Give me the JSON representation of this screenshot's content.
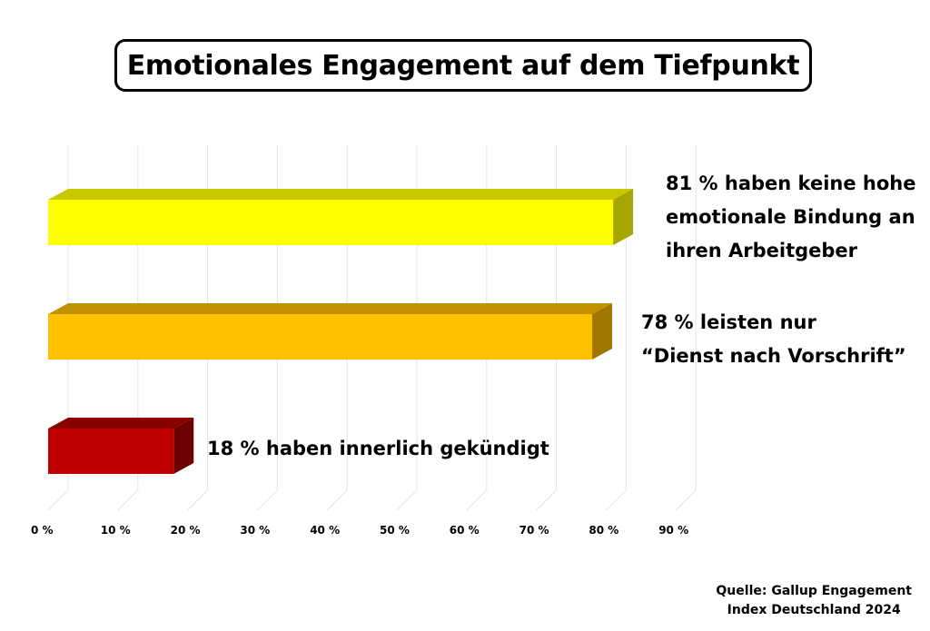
{
  "chart_data": {
    "type": "bar",
    "orientation": "horizontal",
    "title": "Emotionales Engagement auf dem Tiefpunkt",
    "categories": [
      "81 % haben keine hohe emotionale Bindung an ihren Arbeitgeber",
      "78 % leisten nur “Dienst nach Vorschrift”",
      "18 % haben innerlich gekündigt"
    ],
    "values": [
      81,
      78,
      18
    ],
    "label_lines": [
      [
        "81 % haben keine hohe",
        "emotionale Bindung an",
        "ihren Arbeitgeber"
      ],
      [
        "78 % leisten nur",
        "“Dienst nach Vorschrift”"
      ],
      [
        "18 % haben innerlich gekündigt"
      ]
    ],
    "bar_colors": [
      {
        "front": "#FFFF00",
        "top": "#C8C800",
        "side": "#A6A600"
      },
      {
        "front": "#FFC000",
        "top": "#C39000",
        "side": "#A07800"
      },
      {
        "front": "#C00000",
        "top": "#8A0000",
        "side": "#6E0000"
      }
    ],
    "xlim": [
      0,
      90
    ],
    "xticks": [
      "0 %",
      "10 %",
      "20 %",
      "30 %",
      "40 %",
      "50 %",
      "60 %",
      "70 %",
      "80 %",
      "90 %"
    ],
    "xlabel": "",
    "ylabel": "",
    "grid": true,
    "source": [
      "Quelle: Gallup Engagement",
      "Index Deutschland 2024"
    ]
  }
}
